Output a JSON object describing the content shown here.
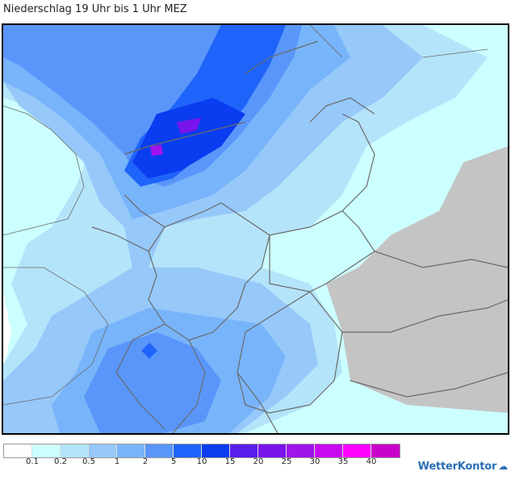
{
  "title": "Niederschlag 19 Uhr bis 1 Uhr MEZ",
  "brand": "WetterKontor",
  "colors": {
    "land": "#c4c4c4",
    "border": "#6a6a6a",
    "frame": "#000000"
  },
  "legend": {
    "colors": [
      "#ffffff",
      "#ccffff",
      "#b4e4fa",
      "#96c8fa",
      "#78b4fa",
      "#5a96fa",
      "#1e64fa",
      "#0a3cf0",
      "#5a1eeb",
      "#7814eb",
      "#a014eb",
      "#c80af0",
      "#ff00ff",
      "#c800c8"
    ],
    "labels": [
      "0.1",
      "0.2",
      "0.5",
      "1",
      "2",
      "5",
      "10",
      "15",
      "20",
      "25",
      "30",
      "35",
      "40"
    ]
  }
}
